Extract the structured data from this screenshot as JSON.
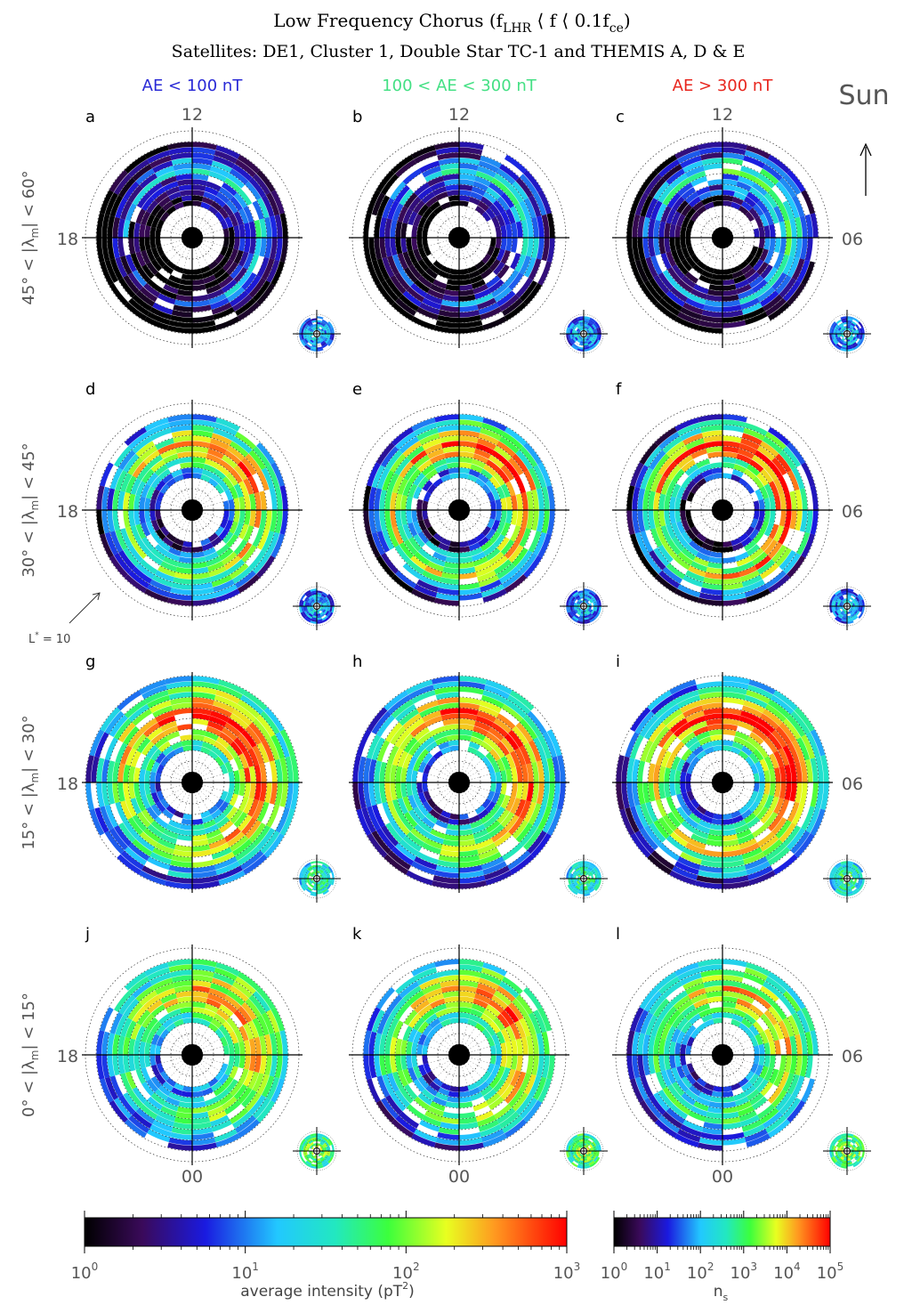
{
  "title": {
    "line1_main": "Low Frequency Chorus (f",
    "line1_sub1": "LHR",
    "line1_mid": " ⟨ f ⟨ 0.1f",
    "line1_sub2": "ce",
    "line1_end": ")",
    "line2": "Satellites: DE1, Cluster 1, Double Star TC-1 and THEMIS A, D & E"
  },
  "column_headers": [
    {
      "label": "AE < 100 nT",
      "color": "#2a2ad6"
    },
    {
      "label": "100 < AE < 300 nT",
      "color": "#44e084"
    },
    {
      "label": "AE > 300 nT",
      "color": "#e8261e"
    }
  ],
  "sun_label": "Sun",
  "mlt_labels": {
    "noon": "12",
    "dusk": "18",
    "dawn": "06",
    "midnight": "00"
  },
  "row_labels": [
    {
      "text": "45° < |λ",
      "sub": "m",
      "end": "| < 60°"
    },
    {
      "text": "30° < |λ",
      "sub": "m",
      "end": "| < 45°"
    },
    {
      "text": "15° < |λ",
      "sub": "m",
      "end": "| < 30°"
    },
    {
      "text": "0° < |λ",
      "sub": "m",
      "end": "| < 15°"
    }
  ],
  "annotation": {
    "text_main": "L",
    "text_sup": "*",
    "text_end": " = 10"
  },
  "colorbar_intensity": {
    "ticks": [
      {
        "base": "10",
        "exp": "0"
      },
      {
        "base": "10",
        "exp": "1"
      },
      {
        "base": "10",
        "exp": "2"
      },
      {
        "base": "10",
        "exp": "3"
      }
    ],
    "label_main": "average intensity (pT",
    "label_sup": "2",
    "label_end": ")"
  },
  "colorbar_samples": {
    "ticks": [
      {
        "base": "10",
        "exp": "0"
      },
      {
        "base": "10",
        "exp": "1"
      },
      {
        "base": "10",
        "exp": "2"
      },
      {
        "base": "10",
        "exp": "3"
      },
      {
        "base": "10",
        "exp": "4"
      },
      {
        "base": "10",
        "exp": "5"
      }
    ],
    "label_main": "n",
    "label_sub": "s"
  },
  "chart_data": {
    "type": "heatmap",
    "projection": "polar (MLT vs L*)",
    "radial_range_Lstar": [
      0,
      10
    ],
    "ring_gridlines_Lstar": [
      1,
      2,
      3,
      4,
      5,
      6,
      7,
      8,
      9,
      10
    ],
    "mlt_sectors_per_panel": 24,
    "intensity_scale": "log",
    "intensity_range_pT2": [
      1,
      1000
    ],
    "samples_range": [
      1,
      100000
    ],
    "panels": [
      {
        "id": "a",
        "row": "45° < |λm| < 60°",
        "column": "AE < 100 nT",
        "dominant_L_range": [
          3,
          9
        ],
        "typical_level_log10": [
          0.0,
          0.3,
          0.5,
          1.2,
          0.8,
          0.2,
          0.0
        ]
      },
      {
        "id": "b",
        "row": "45° < |λm| < 60°",
        "column": "100 < AE < 300 nT",
        "dominant_L_range": [
          3,
          9
        ],
        "typical_level_log10": [
          0.0,
          0.4,
          0.6,
          1.2,
          0.9,
          0.3,
          0.0
        ]
      },
      {
        "id": "c",
        "row": "45° < |λm| < 60°",
        "column": "AE > 300 nT",
        "dominant_L_range": [
          3,
          9
        ],
        "typical_level_log10": [
          0.0,
          0.5,
          0.8,
          1.5,
          1.1,
          0.4,
          0.1
        ]
      },
      {
        "id": "d",
        "row": "30° < |λm| < 45°",
        "column": "AE < 100 nT",
        "dominant_L_range": [
          3,
          9
        ],
        "typical_level_log10": [
          0.8,
          1.5,
          1.9,
          2.3,
          1.8,
          1.2,
          0.7
        ]
      },
      {
        "id": "e",
        "row": "30° < |λm| < 45°",
        "column": "100 < AE < 300 nT",
        "dominant_L_range": [
          3,
          9
        ],
        "typical_level_log10": [
          0.7,
          1.6,
          2.1,
          2.6,
          2.0,
          1.3,
          0.6
        ]
      },
      {
        "id": "f",
        "row": "30° < |λm| < 45°",
        "column": "AE > 300 nT",
        "dominant_L_range": [
          3,
          9
        ],
        "typical_level_log10": [
          0.5,
          1.5,
          2.2,
          2.7,
          2.1,
          1.3,
          0.5
        ]
      },
      {
        "id": "g",
        "row": "15° < |λm| < 30°",
        "column": "AE < 100 nT",
        "dominant_L_range": [
          3,
          10
        ],
        "typical_level_log10": [
          1.2,
          1.8,
          2.2,
          2.5,
          2.1,
          1.6,
          1.1
        ]
      },
      {
        "id": "h",
        "row": "15° < |λm| < 30°",
        "column": "100 < AE < 300 nT",
        "dominant_L_range": [
          3,
          10
        ],
        "typical_level_log10": [
          1.0,
          1.7,
          2.1,
          2.4,
          2.0,
          1.4,
          0.9
        ]
      },
      {
        "id": "i",
        "row": "15° < |λm| < 30°",
        "column": "AE > 300 nT",
        "dominant_L_range": [
          3,
          10
        ],
        "typical_level_log10": [
          1.0,
          1.8,
          2.3,
          2.6,
          2.2,
          1.5,
          0.9
        ]
      },
      {
        "id": "j",
        "row": "0° < |λm| < 15°",
        "column": "AE < 100 nT",
        "dominant_L_range": [
          3,
          9
        ],
        "typical_level_log10": [
          1.3,
          1.7,
          2.0,
          2.1,
          1.8,
          1.4,
          1.2
        ]
      },
      {
        "id": "k",
        "row": "0° < |λm| < 15°",
        "column": "100 < AE < 300 nT",
        "dominant_L_range": [
          3,
          9
        ],
        "typical_level_log10": [
          1.2,
          1.7,
          2.1,
          2.3,
          1.9,
          1.4,
          1.1
        ]
      },
      {
        "id": "l",
        "row": "0° < |λm| < 15°",
        "column": "AE > 300 nT",
        "dominant_L_range": [
          3,
          9
        ],
        "typical_level_log10": [
          1.1,
          1.6,
          1.9,
          2.1,
          1.7,
          1.3,
          1.0
        ]
      }
    ]
  }
}
